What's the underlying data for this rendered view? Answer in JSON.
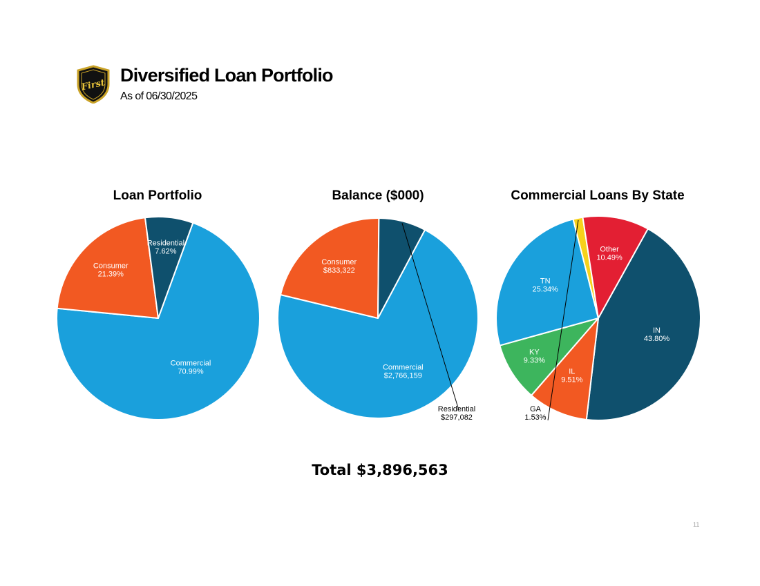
{
  "header": {
    "title": "Diversified Loan Portfolio",
    "subtitle": "As of 06/30/2025",
    "logo_text": "First"
  },
  "chart_data": [
    {
      "type": "pie",
      "title": "Loan Portfolio",
      "slices": [
        {
          "name": "Commercial",
          "value": 70.99,
          "label": "70.99%",
          "color": "#1aa0dc"
        },
        {
          "name": "Consumer",
          "value": 21.39,
          "label": "21.39%",
          "color": "#f25922"
        },
        {
          "name": "Residential",
          "value": 7.62,
          "label": "7.62%",
          "color": "#0f506d"
        }
      ]
    },
    {
      "type": "pie",
      "title": "Balance ($000)",
      "slices": [
        {
          "name": "Commercial",
          "value": 2766159,
          "label": "$2,766,159",
          "color": "#1aa0dc"
        },
        {
          "name": "Consumer",
          "value": 833322,
          "label": "$833,322",
          "color": "#f25922"
        },
        {
          "name": "Residential",
          "value": 297082,
          "label": "$297,082",
          "color": "#0f506d"
        }
      ]
    },
    {
      "type": "pie",
      "title": "Commercial Loans By State",
      "slices": [
        {
          "name": "IN",
          "value": 43.8,
          "label": "43.80%",
          "color": "#0f506d"
        },
        {
          "name": "IL",
          "value": 9.51,
          "label": "9.51%",
          "color": "#f25922"
        },
        {
          "name": "KY",
          "value": 9.33,
          "label": "9.33%",
          "color": "#3db55d"
        },
        {
          "name": "TN",
          "value": 25.34,
          "label": "25.34%",
          "color": "#1aa0dc"
        },
        {
          "name": "GA",
          "value": 1.53,
          "label": "1.53%",
          "color": "#f7d21b"
        },
        {
          "name": "Other",
          "value": 10.49,
          "label": "10.49%",
          "color": "#e31f33"
        }
      ]
    }
  ],
  "total": "Total $3,896,563",
  "page_number": "11"
}
